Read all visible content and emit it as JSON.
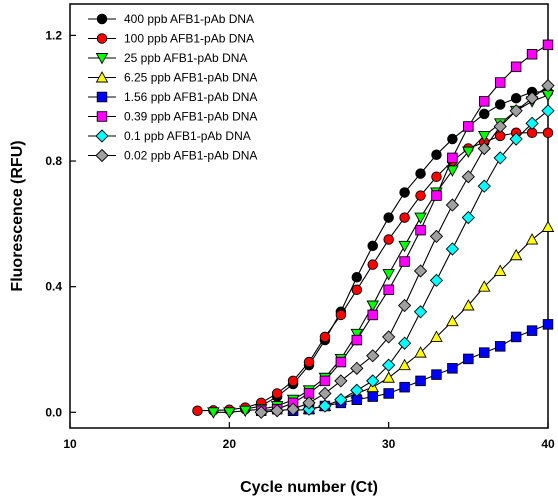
{
  "chart_data": {
    "type": "line",
    "title": "",
    "xlabel": "Cycle number (Ct)",
    "ylabel": "Fluorescence (RFU)",
    "xlim": [
      10,
      40
    ],
    "ylim": [
      -0.05,
      1.3
    ],
    "xticks": [
      10,
      20,
      30,
      40
    ],
    "yticks": [
      0.0,
      0.4,
      0.8,
      1.2
    ],
    "xtick_labels": [
      "10",
      "20",
      "30",
      "40"
    ],
    "ytick_labels": [
      "0.0",
      "0.4",
      "0.8",
      "1.2"
    ],
    "grid": false,
    "legend_position": "top-left",
    "x": [
      18,
      19,
      20,
      21,
      22,
      23,
      24,
      25,
      26,
      27,
      28,
      29,
      30,
      31,
      32,
      33,
      34,
      35,
      36,
      37,
      38,
      39,
      40
    ],
    "series": [
      {
        "name": "400 ppb AFB1-pAb DNA",
        "marker": "circle",
        "color": "#000000",
        "values": [
          null,
          null,
          null,
          0.01,
          0.02,
          0.05,
          0.09,
          0.15,
          0.23,
          0.32,
          0.43,
          0.53,
          0.62,
          0.7,
          0.76,
          0.82,
          0.87,
          0.91,
          0.95,
          0.98,
          1.0,
          1.02,
          1.02
        ]
      },
      {
        "name": "100 ppb AFB1-pAb DNA",
        "marker": "circle",
        "color": "#ff0000",
        "values": [
          0.005,
          0.006,
          0.008,
          0.015,
          0.03,
          0.06,
          0.1,
          0.16,
          0.24,
          0.31,
          0.39,
          0.47,
          0.55,
          0.62,
          0.69,
          0.75,
          0.8,
          0.84,
          0.86,
          0.88,
          0.89,
          0.89,
          0.89
        ]
      },
      {
        "name": "25 ppb AFB1-pAb DNA",
        "marker": "triangle-down",
        "color": "#00ff00",
        "values": [
          null,
          0.0,
          0.0,
          0.005,
          0.01,
          0.02,
          0.04,
          0.07,
          0.11,
          0.17,
          0.25,
          0.34,
          0.44,
          0.53,
          0.62,
          0.7,
          0.77,
          0.83,
          0.88,
          0.92,
          0.96,
          0.99,
          1.01
        ]
      },
      {
        "name": "6.25 ppb AFB1-pAb DNA",
        "marker": "triangle-up",
        "color": "#ffff00",
        "values": [
          null,
          null,
          null,
          null,
          null,
          null,
          null,
          0.01,
          0.02,
          0.04,
          0.06,
          0.08,
          0.11,
          0.15,
          0.19,
          0.24,
          0.29,
          0.34,
          0.4,
          0.45,
          0.5,
          0.55,
          0.59
        ]
      },
      {
        "name": "1.56 ppb AFB1-pAb DNA",
        "marker": "square",
        "color": "#0000ff",
        "values": [
          null,
          null,
          null,
          null,
          null,
          null,
          0.005,
          0.01,
          0.02,
          0.03,
          0.04,
          0.05,
          0.06,
          0.08,
          0.1,
          0.12,
          0.14,
          0.17,
          0.19,
          0.21,
          0.24,
          0.26,
          0.28
        ]
      },
      {
        "name": "0.39 ppb AFB1-pAb DNA",
        "marker": "square",
        "color": "#ff00ff",
        "values": [
          null,
          null,
          null,
          null,
          0.005,
          0.01,
          0.03,
          0.06,
          0.1,
          0.16,
          0.23,
          0.31,
          0.39,
          0.48,
          0.58,
          0.69,
          0.81,
          0.91,
          0.99,
          1.05,
          1.1,
          1.14,
          1.17
        ]
      },
      {
        "name": "0.1 ppb AFB1-pAb DNA",
        "marker": "diamond",
        "color": "#00ffff",
        "values": [
          null,
          null,
          null,
          null,
          null,
          null,
          null,
          0.01,
          0.02,
          0.04,
          0.07,
          0.1,
          0.15,
          0.22,
          0.32,
          0.42,
          0.52,
          0.62,
          0.72,
          0.81,
          0.87,
          0.92,
          0.96
        ]
      },
      {
        "name": "0.02 ppb AFB1-pAb DNA",
        "marker": "diamond",
        "color": "#a0a0a0",
        "values": [
          null,
          null,
          null,
          null,
          0.0,
          0.005,
          0.01,
          0.03,
          0.06,
          0.1,
          0.14,
          0.18,
          0.24,
          0.34,
          0.45,
          0.56,
          0.66,
          0.75,
          0.84,
          0.91,
          0.96,
          1.0,
          1.04
        ]
      }
    ]
  }
}
